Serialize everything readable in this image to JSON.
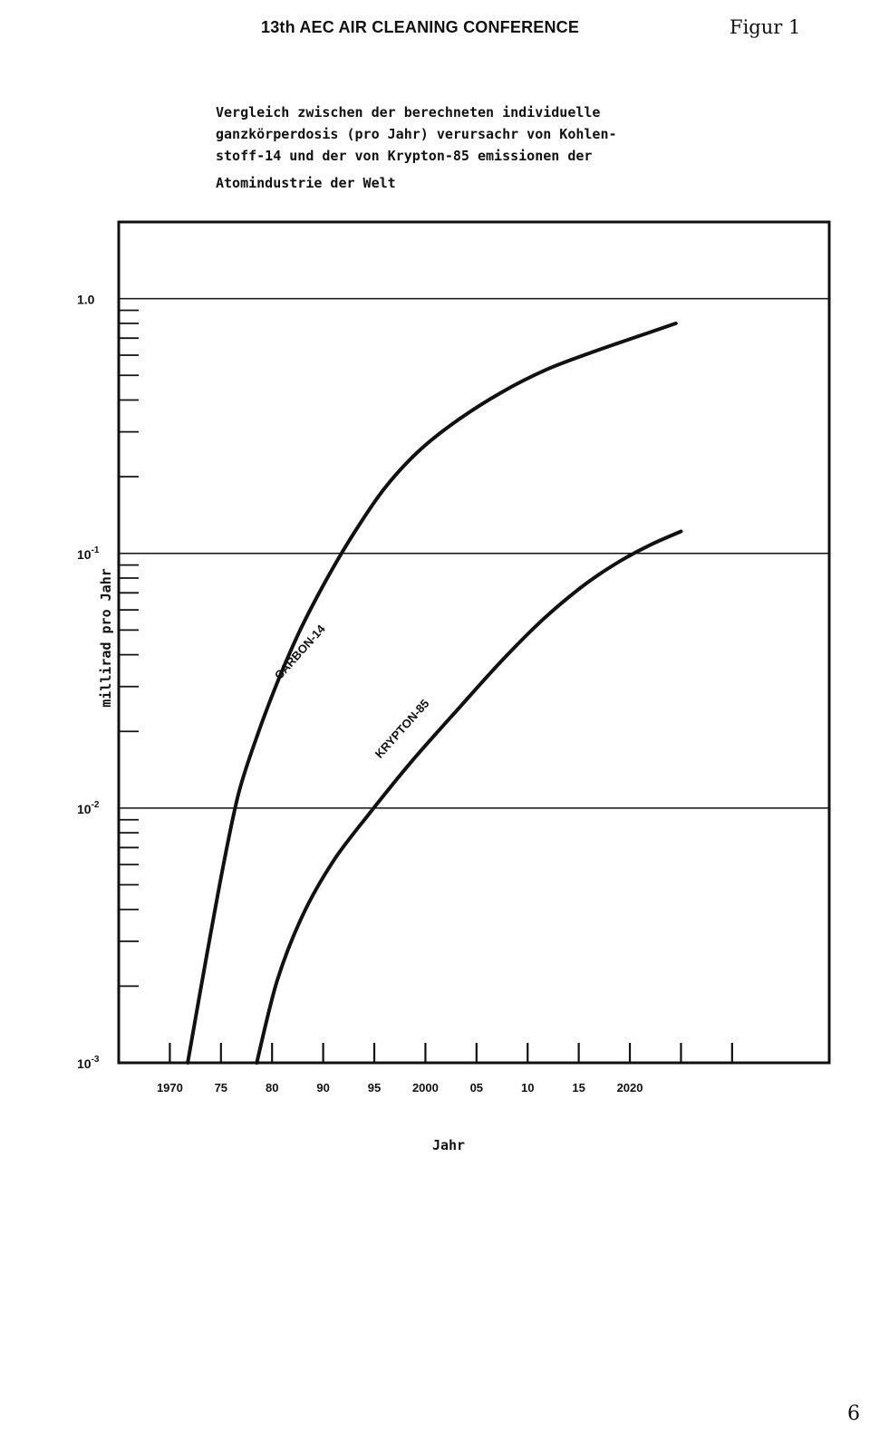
{
  "header": {
    "conference": "13th AEC AIR CLEANING CONFERENCE",
    "figure_label": "Figur 1"
  },
  "caption": {
    "lines": [
      "Vergleich zwischen der berechneten individuelle",
      "ganzkörperdosis (pro Jahr) verursachr von Kohlen-",
      "stoff-14 und der von Krypton-85 emissionen der",
      "Atomindustrie der Welt"
    ]
  },
  "page_number": "6",
  "chart_data": {
    "type": "line",
    "title": "Vergleich zwischen der berechneten individuelle ganzkörperdosis (pro Jahr) verursachr von Kohlenstoff-14 und der von Krypton-85 emissionen der Atomindustrie der Welt",
    "xlabel": "Jahr",
    "ylabel": "millirad pro Jahr",
    "y_scale": "log",
    "ylim": [
      0.001,
      2.0
    ],
    "y_major_ticks": [
      {
        "value": 1.0,
        "label_base": "1.0",
        "label_exp": ""
      },
      {
        "value": 0.1,
        "label_base": "10",
        "label_exp": "-1"
      },
      {
        "value": 0.01,
        "label_base": "10",
        "label_exp": "-2"
      },
      {
        "value": 0.001,
        "label_base": "10",
        "label_exp": "-3"
      }
    ],
    "x_tick_positions": [
      1,
      2,
      3,
      4,
      5,
      6,
      7,
      8,
      9,
      10,
      11,
      12
    ],
    "x_tick_labels": [
      {
        "pos": 1,
        "text": "1970"
      },
      {
        "pos": 2,
        "text": "75"
      },
      {
        "pos": 3,
        "text": "80"
      },
      {
        "pos": 4,
        "text": "90"
      },
      {
        "pos": 5,
        "text": "95"
      },
      {
        "pos": 6,
        "text": "2000"
      },
      {
        "pos": 7,
        "text": "05"
      },
      {
        "pos": 8,
        "text": "10"
      },
      {
        "pos": 9,
        "text": "15"
      },
      {
        "pos": 10,
        "text": "2020"
      }
    ],
    "xlim": [
      0,
      13.9
    ],
    "grid": "horizontal at decades",
    "series": [
      {
        "name": "CARBON-14",
        "points": [
          [
            1.35,
            0.001
          ],
          [
            1.7,
            0.0025
          ],
          [
            2.05,
            0.006
          ],
          [
            2.35,
            0.0115
          ],
          [
            2.7,
            0.019
          ],
          [
            3.1,
            0.031
          ],
          [
            3.55,
            0.05
          ],
          [
            4.05,
            0.078
          ],
          [
            4.6,
            0.12
          ],
          [
            5.2,
            0.18
          ],
          [
            5.85,
            0.25
          ],
          [
            6.6,
            0.33
          ],
          [
            7.5,
            0.43
          ],
          [
            8.4,
            0.53
          ],
          [
            9.3,
            0.62
          ],
          [
            10.15,
            0.71
          ],
          [
            10.9,
            0.8
          ]
        ]
      },
      {
        "name": "KRYPTON-85",
        "points": [
          [
            2.7,
            0.001
          ],
          [
            3.1,
            0.0021
          ],
          [
            3.6,
            0.0038
          ],
          [
            4.2,
            0.0062
          ],
          [
            4.9,
            0.0095
          ],
          [
            5.7,
            0.015
          ],
          [
            6.6,
            0.024
          ],
          [
            7.5,
            0.038
          ],
          [
            8.3,
            0.055
          ],
          [
            9.1,
            0.075
          ],
          [
            9.8,
            0.093
          ],
          [
            10.4,
            0.108
          ],
          [
            11.0,
            0.122
          ]
        ]
      }
    ],
    "annotations": [
      {
        "text": "CARBON-14",
        "x": 3.6,
        "y": 0.04
      },
      {
        "text": "KRYPTON-85",
        "x": 5.6,
        "y": 0.02
      }
    ]
  }
}
